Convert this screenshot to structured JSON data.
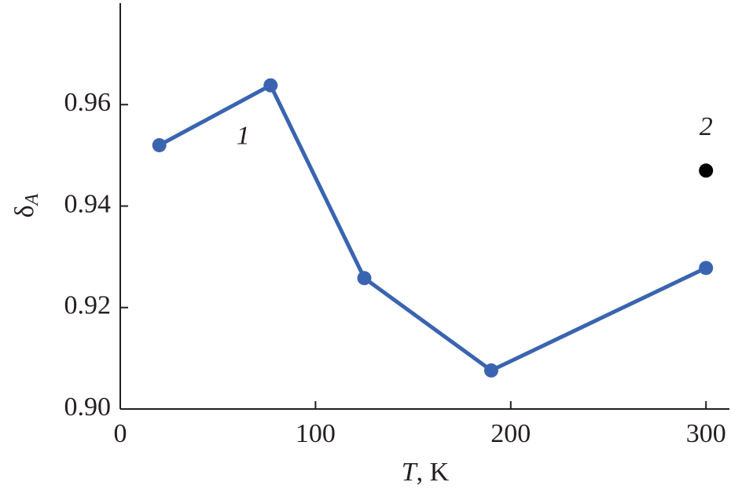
{
  "chart_data": {
    "type": "line",
    "xlabel": "T, K",
    "ylabel": "δA",
    "xlim": [
      0,
      312
    ],
    "xticks": [
      0,
      100,
      200,
      300
    ],
    "ylim": [
      0.9,
      0.98
    ],
    "yticks": [
      {
        "value": 0.9,
        "label": "0.90"
      },
      0.92,
      0.94,
      0.96
    ],
    "series": [
      {
        "name": "1",
        "color": "#3a64b0",
        "x": [
          20,
          77,
          125,
          190,
          300
        ],
        "values": [
          0.952,
          0.9638,
          0.9258,
          0.9076,
          0.9278
        ]
      },
      {
        "name": "2",
        "color": "#000000",
        "x": [
          300
        ],
        "values": [
          0.947
        ]
      }
    ]
  }
}
